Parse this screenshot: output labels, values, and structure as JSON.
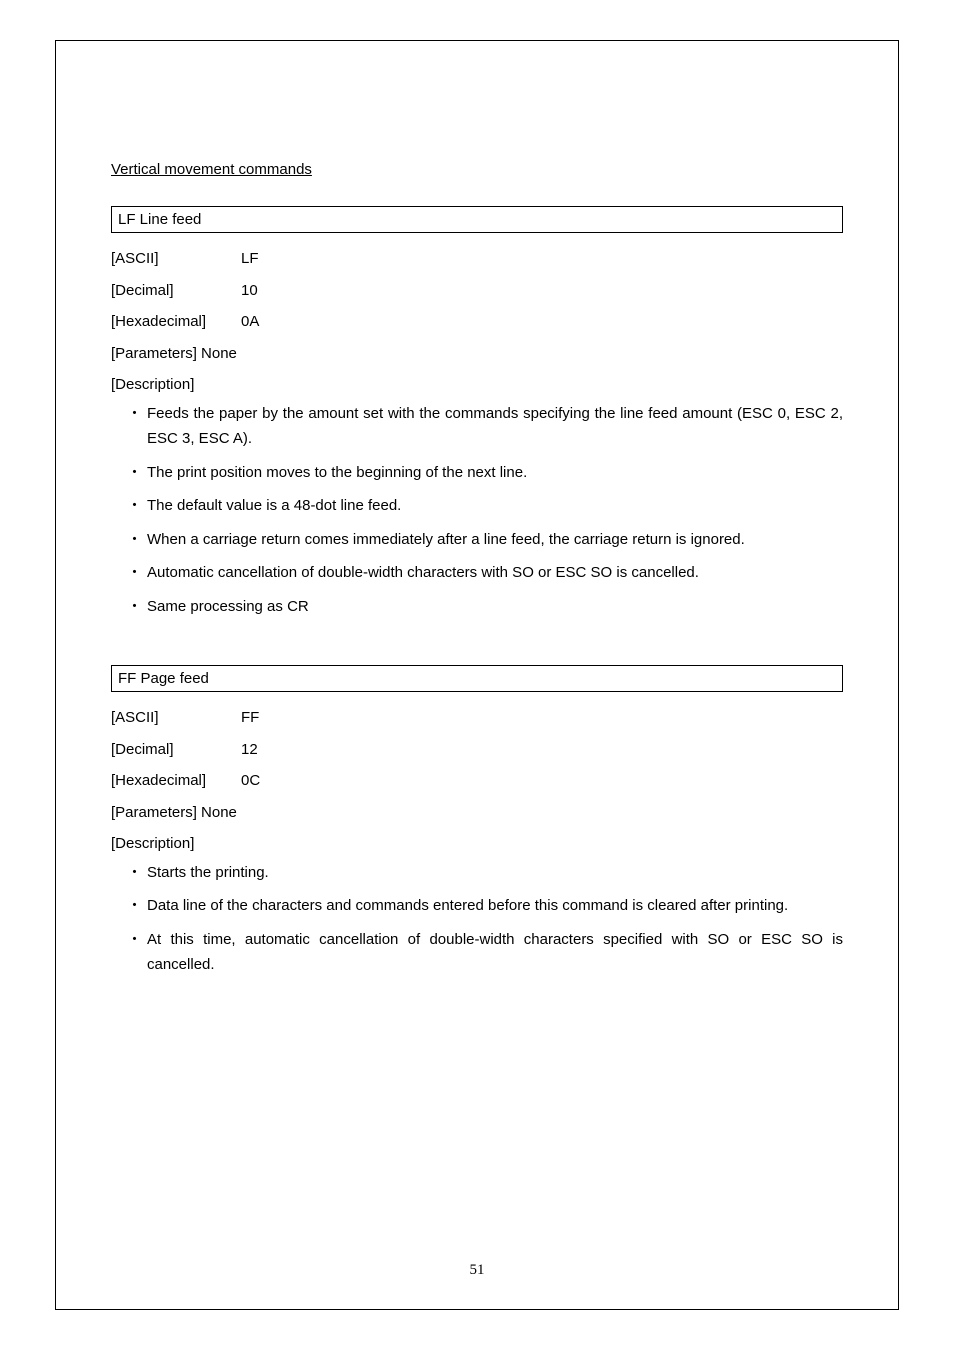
{
  "page": {
    "section_title": "Vertical movement commands",
    "page_number": "51"
  },
  "command1": {
    "box_title": "LF Line feed",
    "ascii_label": "[ASCII]",
    "ascii_value": "LF",
    "decimal_label": "[Decimal]",
    "decimal_value": "10",
    "hex_label": "[Hexadecimal]",
    "hex_value": "0A",
    "params_label": "[Parameters] None",
    "desc_label": "[Description]",
    "bullets": {
      "b1": "Feeds the paper by the amount set with the commands specifying the line feed amount (ESC 0, ESC 2, ESC 3, ESC A).",
      "b2": "The print position moves to the beginning of the next line.",
      "b3": "The default value is a 48-dot line feed.",
      "b4": "When a carriage return comes immediately after a line feed, the carriage return is ignored.",
      "b5": "Automatic cancellation of double-width characters with SO or ESC   SO is cancelled.",
      "b6": "Same processing as CR"
    }
  },
  "command2": {
    "box_title": "FF Page feed",
    "ascii_label": "[ASCII]",
    "ascii_value": "FF",
    "decimal_label": "[Decimal]",
    "decimal_value": "12",
    "hex_label": "[Hexadecimal]",
    "hex_value": "0C",
    "params_label": "[Parameters] None",
    "desc_label": "[Description]",
    "bullets": {
      "b1": "Starts the printing.",
      "b2": "Data line of the characters and commands entered before this command is cleared after printing.",
      "b3": "At this time, automatic cancellation of double-width characters specified with SO or ESC SO is cancelled."
    }
  }
}
